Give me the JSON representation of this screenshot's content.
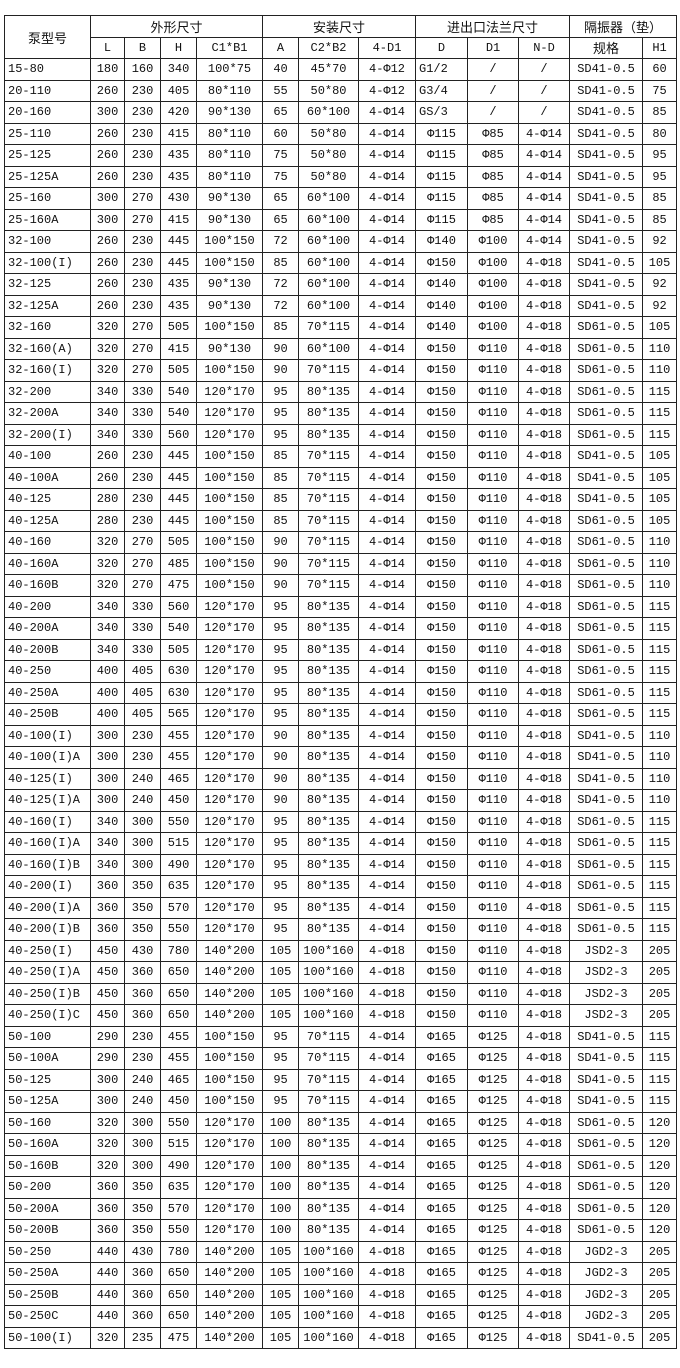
{
  "table": {
    "group_headers": {
      "model": "泵型号",
      "outline": "外形尺寸",
      "install": "安装尺寸",
      "flange": "进出口法兰尺寸",
      "isolator": "隔振器（垫）"
    },
    "sub_headers": [
      "L",
      "B",
      "H",
      "C1*B1",
      "A",
      "C2*B2",
      "4-D1",
      "D",
      "D1",
      "N-D",
      "规格",
      "H1"
    ],
    "rows": [
      [
        "15-80",
        "180",
        "160",
        "340",
        "100*75",
        "40",
        "45*70",
        "4-Φ12",
        "G1/2",
        "/",
        "/",
        "SD41-0.5",
        "60"
      ],
      [
        "20-110",
        "260",
        "230",
        "405",
        "80*110",
        "55",
        "50*80",
        "4-Φ12",
        "G3/4",
        "/",
        "/",
        "SD41-0.5",
        "75"
      ],
      [
        "20-160",
        "300",
        "230",
        "420",
        "90*130",
        "65",
        "60*100",
        "4-Φ14",
        "GS/3",
        "/",
        "/",
        "SD41-0.5",
        "85"
      ],
      [
        "25-110",
        "260",
        "230",
        "415",
        "80*110",
        "60",
        "50*80",
        "4-Φ14",
        "Φ115",
        "Φ85",
        "4-Φ14",
        "SD41-0.5",
        "80"
      ],
      [
        "25-125",
        "260",
        "230",
        "435",
        "80*110",
        "75",
        "50*80",
        "4-Φ14",
        "Φ115",
        "Φ85",
        "4-Φ14",
        "SD41-0.5",
        "95"
      ],
      [
        "25-125A",
        "260",
        "230",
        "435",
        "80*110",
        "75",
        "50*80",
        "4-Φ14",
        "Φ115",
        "Φ85",
        "4-Φ14",
        "SD41-0.5",
        "95"
      ],
      [
        "25-160",
        "300",
        "270",
        "430",
        "90*130",
        "65",
        "60*100",
        "4-Φ14",
        "Φ115",
        "Φ85",
        "4-Φ14",
        "SD41-0.5",
        "85"
      ],
      [
        "25-160A",
        "300",
        "270",
        "415",
        "90*130",
        "65",
        "60*100",
        "4-Φ14",
        "Φ115",
        "Φ85",
        "4-Φ14",
        "SD41-0.5",
        "85"
      ],
      [
        "32-100",
        "260",
        "230",
        "445",
        "100*150",
        "72",
        "60*100",
        "4-Φ14",
        "Φ140",
        "Φ100",
        "4-Φ14",
        "SD41-0.5",
        "92"
      ],
      [
        "32-100(I)",
        "260",
        "230",
        "445",
        "100*150",
        "85",
        "60*100",
        "4-Φ14",
        "Φ150",
        "Φ100",
        "4-Φ18",
        "SD41-0.5",
        "105"
      ],
      [
        "32-125",
        "260",
        "230",
        "435",
        "90*130",
        "72",
        "60*100",
        "4-Φ14",
        "Φ140",
        "Φ100",
        "4-Φ18",
        "SD41-0.5",
        "92"
      ],
      [
        "32-125A",
        "260",
        "230",
        "435",
        "90*130",
        "72",
        "60*100",
        "4-Φ14",
        "Φ140",
        "Φ100",
        "4-Φ18",
        "SD41-0.5",
        "92"
      ],
      [
        "32-160",
        "320",
        "270",
        "505",
        "100*150",
        "85",
        "70*115",
        "4-Φ14",
        "Φ140",
        "Φ100",
        "4-Φ18",
        "SD61-0.5",
        "105"
      ],
      [
        "32-160(A)",
        "320",
        "270",
        "415",
        "90*130",
        "90",
        "60*100",
        "4-Φ14",
        "Φ150",
        "Φ110",
        "4-Φ18",
        "SD61-0.5",
        "110"
      ],
      [
        "32-160(I)",
        "320",
        "270",
        "505",
        "100*150",
        "90",
        "70*115",
        "4-Φ14",
        "Φ150",
        "Φ110",
        "4-Φ18",
        "SD61-0.5",
        "110"
      ],
      [
        "32-200",
        "340",
        "330",
        "540",
        "120*170",
        "95",
        "80*135",
        "4-Φ14",
        "Φ150",
        "Φ110",
        "4-Φ18",
        "SD61-0.5",
        "115"
      ],
      [
        "32-200A",
        "340",
        "330",
        "540",
        "120*170",
        "95",
        "80*135",
        "4-Φ14",
        "Φ150",
        "Φ110",
        "4-Φ18",
        "SD61-0.5",
        "115"
      ],
      [
        "32-200(I)",
        "340",
        "330",
        "560",
        "120*170",
        "95",
        "80*135",
        "4-Φ14",
        "Φ150",
        "Φ110",
        "4-Φ18",
        "SD61-0.5",
        "115"
      ],
      [
        "40-100",
        "260",
        "230",
        "445",
        "100*150",
        "85",
        "70*115",
        "4-Φ14",
        "Φ150",
        "Φ110",
        "4-Φ18",
        "SD41-0.5",
        "105"
      ],
      [
        "40-100A",
        "260",
        "230",
        "445",
        "100*150",
        "85",
        "70*115",
        "4-Φ14",
        "Φ150",
        "Φ110",
        "4-Φ18",
        "SD41-0.5",
        "105"
      ],
      [
        "40-125",
        "280",
        "230",
        "445",
        "100*150",
        "85",
        "70*115",
        "4-Φ14",
        "Φ150",
        "Φ110",
        "4-Φ18",
        "SD41-0.5",
        "105"
      ],
      [
        "40-125A",
        "280",
        "230",
        "445",
        "100*150",
        "85",
        "70*115",
        "4-Φ14",
        "Φ150",
        "Φ110",
        "4-Φ18",
        "SD61-0.5",
        "105"
      ],
      [
        "40-160",
        "320",
        "270",
        "505",
        "100*150",
        "90",
        "70*115",
        "4-Φ14",
        "Φ150",
        "Φ110",
        "4-Φ18",
        "SD61-0.5",
        "110"
      ],
      [
        "40-160A",
        "320",
        "270",
        "485",
        "100*150",
        "90",
        "70*115",
        "4-Φ14",
        "Φ150",
        "Φ110",
        "4-Φ18",
        "SD61-0.5",
        "110"
      ],
      [
        "40-160B",
        "320",
        "270",
        "475",
        "100*150",
        "90",
        "70*115",
        "4-Φ14",
        "Φ150",
        "Φ110",
        "4-Φ18",
        "SD61-0.5",
        "110"
      ],
      [
        "40-200",
        "340",
        "330",
        "560",
        "120*170",
        "95",
        "80*135",
        "4-Φ14",
        "Φ150",
        "Φ110",
        "4-Φ18",
        "SD61-0.5",
        "115"
      ],
      [
        "40-200A",
        "340",
        "330",
        "540",
        "120*170",
        "95",
        "80*135",
        "4-Φ14",
        "Φ150",
        "Φ110",
        "4-Φ18",
        "SD61-0.5",
        "115"
      ],
      [
        "40-200B",
        "340",
        "330",
        "505",
        "120*170",
        "95",
        "80*135",
        "4-Φ14",
        "Φ150",
        "Φ110",
        "4-Φ18",
        "SD61-0.5",
        "115"
      ],
      [
        "40-250",
        "400",
        "405",
        "630",
        "120*170",
        "95",
        "80*135",
        "4-Φ14",
        "Φ150",
        "Φ110",
        "4-Φ18",
        "SD61-0.5",
        "115"
      ],
      [
        "40-250A",
        "400",
        "405",
        "630",
        "120*170",
        "95",
        "80*135",
        "4-Φ14",
        "Φ150",
        "Φ110",
        "4-Φ18",
        "SD61-0.5",
        "115"
      ],
      [
        "40-250B",
        "400",
        "405",
        "565",
        "120*170",
        "95",
        "80*135",
        "4-Φ14",
        "Φ150",
        "Φ110",
        "4-Φ18",
        "SD61-0.5",
        "115"
      ],
      [
        "40-100(I)",
        "300",
        "230",
        "455",
        "120*170",
        "90",
        "80*135",
        "4-Φ14",
        "Φ150",
        "Φ110",
        "4-Φ18",
        "SD41-0.5",
        "110"
      ],
      [
        "40-100(I)A",
        "300",
        "230",
        "455",
        "120*170",
        "90",
        "80*135",
        "4-Φ14",
        "Φ150",
        "Φ110",
        "4-Φ18",
        "SD41-0.5",
        "110"
      ],
      [
        "40-125(I)",
        "300",
        "240",
        "465",
        "120*170",
        "90",
        "80*135",
        "4-Φ14",
        "Φ150",
        "Φ110",
        "4-Φ18",
        "SD41-0.5",
        "110"
      ],
      [
        "40-125(I)A",
        "300",
        "240",
        "450",
        "120*170",
        "90",
        "80*135",
        "4-Φ14",
        "Φ150",
        "Φ110",
        "4-Φ18",
        "SD41-0.5",
        "110"
      ],
      [
        "40-160(I)",
        "340",
        "300",
        "550",
        "120*170",
        "95",
        "80*135",
        "4-Φ14",
        "Φ150",
        "Φ110",
        "4-Φ18",
        "SD61-0.5",
        "115"
      ],
      [
        "40-160(I)A",
        "340",
        "300",
        "515",
        "120*170",
        "95",
        "80*135",
        "4-Φ14",
        "Φ150",
        "Φ110",
        "4-Φ18",
        "SD61-0.5",
        "115"
      ],
      [
        "40-160(I)B",
        "340",
        "300",
        "490",
        "120*170",
        "95",
        "80*135",
        "4-Φ14",
        "Φ150",
        "Φ110",
        "4-Φ18",
        "SD61-0.5",
        "115"
      ],
      [
        "40-200(I)",
        "360",
        "350",
        "635",
        "120*170",
        "95",
        "80*135",
        "4-Φ14",
        "Φ150",
        "Φ110",
        "4-Φ18",
        "SD61-0.5",
        "115"
      ],
      [
        "40-200(I)A",
        "360",
        "350",
        "570",
        "120*170",
        "95",
        "80*135",
        "4-Φ14",
        "Φ150",
        "Φ110",
        "4-Φ18",
        "SD61-0.5",
        "115"
      ],
      [
        "40-200(I)B",
        "360",
        "350",
        "550",
        "120*170",
        "95",
        "80*135",
        "4-Φ14",
        "Φ150",
        "Φ110",
        "4-Φ18",
        "SD61-0.5",
        "115"
      ],
      [
        "40-250(I)",
        "450",
        "430",
        "780",
        "140*200",
        "105",
        "100*160",
        "4-Φ18",
        "Φ150",
        "Φ110",
        "4-Φ18",
        "JSD2-3",
        "205"
      ],
      [
        "40-250(I)A",
        "450",
        "360",
        "650",
        "140*200",
        "105",
        "100*160",
        "4-Φ18",
        "Φ150",
        "Φ110",
        "4-Φ18",
        "JSD2-3",
        "205"
      ],
      [
        "40-250(I)B",
        "450",
        "360",
        "650",
        "140*200",
        "105",
        "100*160",
        "4-Φ18",
        "Φ150",
        "Φ110",
        "4-Φ18",
        "JSD2-3",
        "205"
      ],
      [
        "40-250(I)C",
        "450",
        "360",
        "650",
        "140*200",
        "105",
        "100*160",
        "4-Φ18",
        "Φ150",
        "Φ110",
        "4-Φ18",
        "JSD2-3",
        "205"
      ],
      [
        "50-100",
        "290",
        "230",
        "455",
        "100*150",
        "95",
        "70*115",
        "4-Φ14",
        "Φ165",
        "Φ125",
        "4-Φ18",
        "SD41-0.5",
        "115"
      ],
      [
        "50-100A",
        "290",
        "230",
        "455",
        "100*150",
        "95",
        "70*115",
        "4-Φ14",
        "Φ165",
        "Φ125",
        "4-Φ18",
        "SD41-0.5",
        "115"
      ],
      [
        "50-125",
        "300",
        "240",
        "465",
        "100*150",
        "95",
        "70*115",
        "4-Φ14",
        "Φ165",
        "Φ125",
        "4-Φ18",
        "SD41-0.5",
        "115"
      ],
      [
        "50-125A",
        "300",
        "240",
        "450",
        "100*150",
        "95",
        "70*115",
        "4-Φ14",
        "Φ165",
        "Φ125",
        "4-Φ18",
        "SD41-0.5",
        "115"
      ],
      [
        "50-160",
        "320",
        "300",
        "550",
        "120*170",
        "100",
        "80*135",
        "4-Φ14",
        "Φ165",
        "Φ125",
        "4-Φ18",
        "SD61-0.5",
        "120"
      ],
      [
        "50-160A",
        "320",
        "300",
        "515",
        "120*170",
        "100",
        "80*135",
        "4-Φ14",
        "Φ165",
        "Φ125",
        "4-Φ18",
        "SD61-0.5",
        "120"
      ],
      [
        "50-160B",
        "320",
        "300",
        "490",
        "120*170",
        "100",
        "80*135",
        "4-Φ14",
        "Φ165",
        "Φ125",
        "4-Φ18",
        "SD61-0.5",
        "120"
      ],
      [
        "50-200",
        "360",
        "350",
        "635",
        "120*170",
        "100",
        "80*135",
        "4-Φ14",
        "Φ165",
        "Φ125",
        "4-Φ18",
        "SD61-0.5",
        "120"
      ],
      [
        "50-200A",
        "360",
        "350",
        "570",
        "120*170",
        "100",
        "80*135",
        "4-Φ14",
        "Φ165",
        "Φ125",
        "4-Φ18",
        "SD61-0.5",
        "120"
      ],
      [
        "50-200B",
        "360",
        "350",
        "550",
        "120*170",
        "100",
        "80*135",
        "4-Φ14",
        "Φ165",
        "Φ125",
        "4-Φ18",
        "SD61-0.5",
        "120"
      ],
      [
        "50-250",
        "440",
        "430",
        "780",
        "140*200",
        "105",
        "100*160",
        "4-Φ18",
        "Φ165",
        "Φ125",
        "4-Φ18",
        "JGD2-3",
        "205"
      ],
      [
        "50-250A",
        "440",
        "360",
        "650",
        "140*200",
        "105",
        "100*160",
        "4-Φ18",
        "Φ165",
        "Φ125",
        "4-Φ18",
        "JGD2-3",
        "205"
      ],
      [
        "50-250B",
        "440",
        "360",
        "650",
        "140*200",
        "105",
        "100*160",
        "4-Φ18",
        "Φ165",
        "Φ125",
        "4-Φ18",
        "JGD2-3",
        "205"
      ],
      [
        "50-250C",
        "440",
        "360",
        "650",
        "140*200",
        "105",
        "100*160",
        "4-Φ18",
        "Φ165",
        "Φ125",
        "4-Φ18",
        "JGD2-3",
        "205"
      ],
      [
        "50-100(I)",
        "320",
        "235",
        "475",
        "140*200",
        "105",
        "100*160",
        "4-Φ18",
        "Φ165",
        "Φ125",
        "4-Φ18",
        "SD41-0.5",
        "205"
      ]
    ]
  }
}
